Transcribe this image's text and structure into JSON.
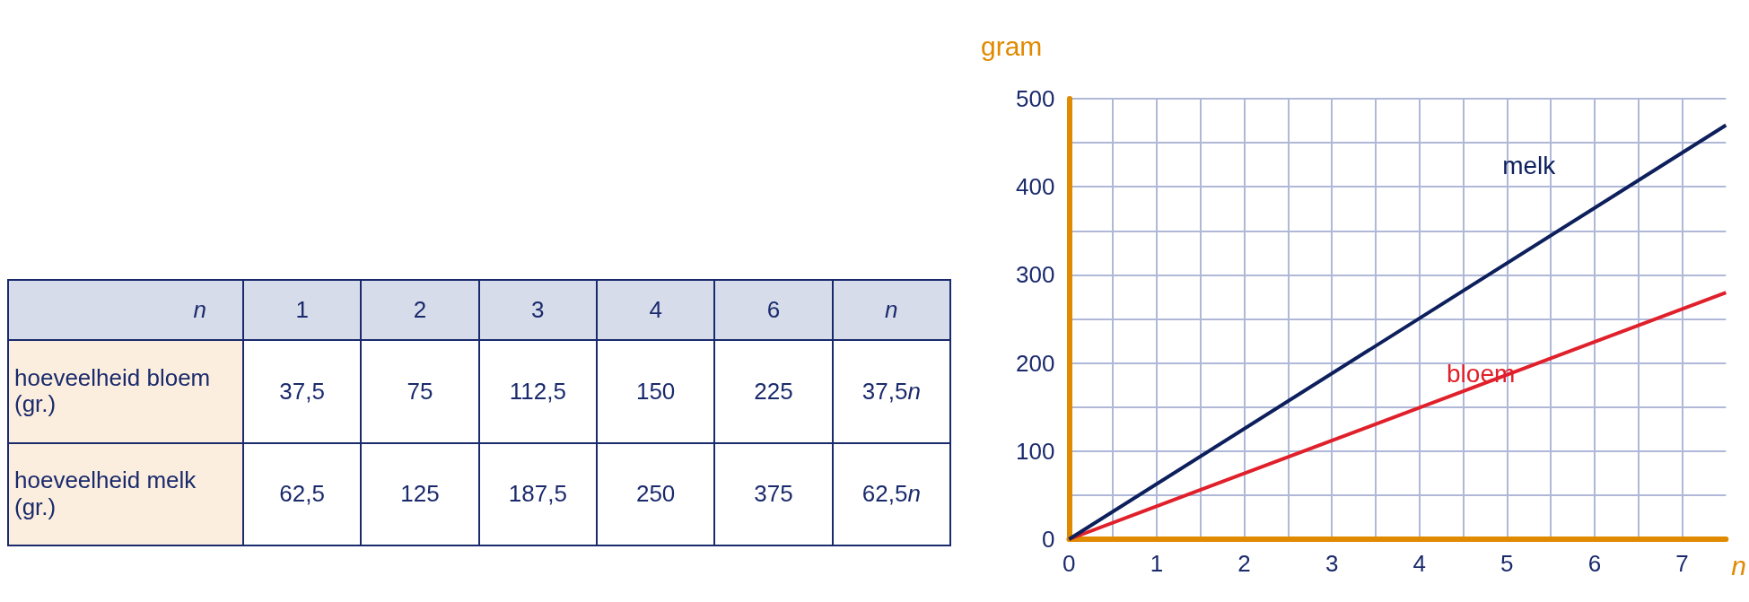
{
  "chart_data": {
    "type": "line",
    "xlabel": "n",
    "ylabel": "gram",
    "x": [
      0,
      7.5
    ],
    "xlim": [
      0,
      7.5
    ],
    "xticks": [
      0,
      1,
      2,
      3,
      4,
      5,
      6,
      7
    ],
    "ylim": [
      0,
      500
    ],
    "yticks": [
      0,
      100,
      200,
      300,
      400,
      500
    ],
    "grid": true,
    "legend": false,
    "marker": "none",
    "line_style": "solid",
    "series": [
      {
        "name": "bloem",
        "color": "#e0202a",
        "values": [
          0,
          280
        ]
      },
      {
        "name": "melk",
        "color": "#0d1f5c",
        "values": [
          0,
          470
        ]
      }
    ],
    "annotations": [
      "n",
      "1",
      "2",
      "3",
      "4",
      "6",
      "n",
      "hoeveelheid bloem (gr.)",
      "37,5",
      "75",
      "112,5",
      "150",
      "225",
      "37,5n",
      "hoeveelheid melk (gr.)",
      "62,5",
      "125",
      "187,5",
      "250",
      "375",
      "62,5n"
    ]
  }
}
